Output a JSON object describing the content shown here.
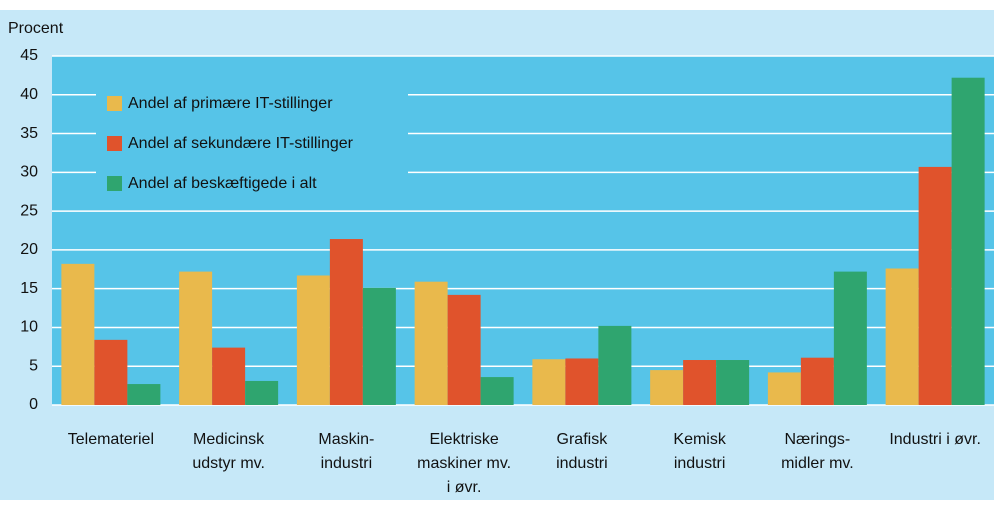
{
  "chart_data": {
    "type": "bar",
    "y_label": "Procent",
    "categories": [
      [
        "Telemateriel"
      ],
      [
        "Medicinsk",
        "udstyr mv."
      ],
      [
        "Maskin-",
        "industri"
      ],
      [
        "Elektriske",
        "maskiner mv.",
        "i øvr."
      ],
      [
        "Grafisk",
        "industri"
      ],
      [
        "Kemisk",
        "industri"
      ],
      [
        "Nærings-",
        "midler mv."
      ],
      [
        "Industri i øvr."
      ]
    ],
    "series": [
      {
        "name": "Andel af primære IT-stillinger",
        "color": "#e9b94c",
        "values": [
          18.2,
          17.2,
          16.7,
          15.9,
          5.9,
          4.5,
          4.2,
          17.6
        ]
      },
      {
        "name": "Andel af sekundære IT-stillinger",
        "color": "#e0532c",
        "values": [
          8.4,
          7.4,
          21.4,
          14.2,
          6.0,
          5.8,
          6.1,
          30.7
        ]
      },
      {
        "name": "Andel af beskæftigede i alt",
        "color": "#2fa56f",
        "values": [
          2.7,
          3.1,
          15.1,
          3.6,
          10.2,
          5.8,
          17.2,
          42.2
        ]
      }
    ],
    "ylim": [
      0,
      45
    ],
    "yticks": [
      0,
      5,
      10,
      15,
      20,
      25,
      30,
      35,
      40,
      45
    ],
    "grid": true,
    "legend": "top-left"
  }
}
